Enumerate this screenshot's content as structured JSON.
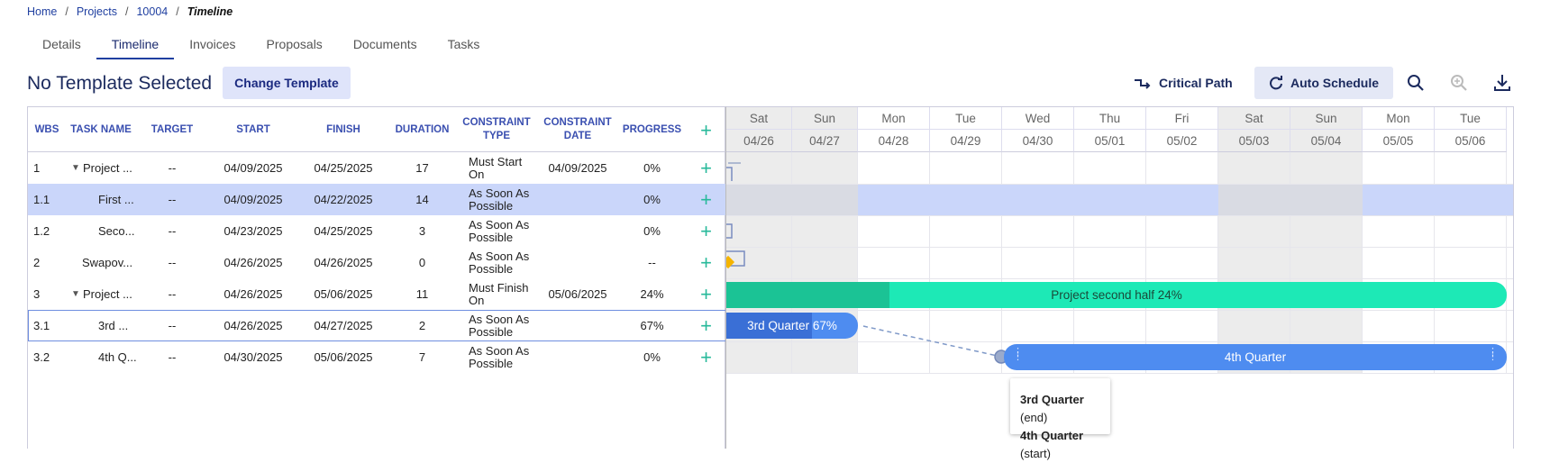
{
  "breadcrumb": {
    "items": [
      "Home",
      "Projects",
      "10004"
    ],
    "current": "Timeline",
    "separator": "/"
  },
  "tabs": [
    {
      "label": "Details",
      "active": false
    },
    {
      "label": "Timeline",
      "active": true
    },
    {
      "label": "Invoices",
      "active": false
    },
    {
      "label": "Proposals",
      "active": false
    },
    {
      "label": "Documents",
      "active": false
    },
    {
      "label": "Tasks",
      "active": false
    }
  ],
  "header": {
    "title": "No Template Selected",
    "change_template_label": "Change Template",
    "critical_path_label": "Critical Path",
    "auto_schedule_label": "Auto Schedule",
    "icons": [
      "critical-path-icon",
      "auto-schedule-icon",
      "zoom-in-icon",
      "zoom-out-icon",
      "download-icon"
    ]
  },
  "grid": {
    "columns": {
      "wbs": "WBS",
      "task_name": "TASK NAME",
      "target": "TARGET",
      "start": "START",
      "finish": "FINISH",
      "duration": "DURATION",
      "constraint_type_1": "CONSTRAINT",
      "constraint_type_2": "TYPE",
      "constraint_date_1": "CONSTRAINT",
      "constraint_date_2": "DATE",
      "progress": "PROGRESS",
      "add": "+"
    },
    "rows": [
      {
        "wbs": "1",
        "name": "Project ...",
        "expand": "▼",
        "target": "--",
        "start": "04/09/2025",
        "finish": "04/25/2025",
        "duration": "17",
        "ctype": "Must Start On",
        "cdate": "04/09/2025",
        "progress": "0%",
        "add": "+"
      },
      {
        "wbs": "1.1",
        "name": "First ...",
        "expand": "",
        "target": "--",
        "start": "04/09/2025",
        "finish": "04/22/2025",
        "duration": "14",
        "ctype": "As Soon As Possible",
        "cdate": "",
        "progress": "0%",
        "add": "+"
      },
      {
        "wbs": "1.2",
        "name": "Seco...",
        "expand": "",
        "target": "--",
        "start": "04/23/2025",
        "finish": "04/25/2025",
        "duration": "3",
        "ctype": "As Soon As Possible",
        "cdate": "",
        "progress": "0%",
        "add": "+"
      },
      {
        "wbs": "2",
        "name": "Swapov...",
        "expand": "",
        "target": "--",
        "start": "04/26/2025",
        "finish": "04/26/2025",
        "duration": "0",
        "ctype": "As Soon As Possible",
        "cdate": "",
        "progress": "--",
        "add": "+"
      },
      {
        "wbs": "3",
        "name": "Project ...",
        "expand": "▼",
        "target": "--",
        "start": "04/26/2025",
        "finish": "05/06/2025",
        "duration": "11",
        "ctype": "Must Finish On",
        "cdate": "05/06/2025",
        "progress": "24%",
        "add": "+"
      },
      {
        "wbs": "3.1",
        "name": "3rd ...",
        "expand": "",
        "target": "--",
        "start": "04/26/2025",
        "finish": "04/27/2025",
        "duration": "2",
        "ctype": "As Soon As Possible",
        "cdate": "",
        "progress": "67%",
        "add": "+"
      },
      {
        "wbs": "3.2",
        "name": "4th Q...",
        "expand": "",
        "target": "--",
        "start": "04/30/2025",
        "finish": "05/06/2025",
        "duration": "7",
        "ctype": "As Soon As Possible",
        "cdate": "",
        "progress": "0%",
        "add": "+"
      }
    ]
  },
  "timeline": {
    "days": [
      {
        "name": "Sat",
        "date": "04/26",
        "weekend": true
      },
      {
        "name": "Sun",
        "date": "04/27",
        "weekend": true
      },
      {
        "name": "Mon",
        "date": "04/28",
        "weekend": false
      },
      {
        "name": "Tue",
        "date": "04/29",
        "weekend": false
      },
      {
        "name": "Wed",
        "date": "04/30",
        "weekend": false
      },
      {
        "name": "Thu",
        "date": "05/01",
        "weekend": false
      },
      {
        "name": "Fri",
        "date": "05/02",
        "weekend": false
      },
      {
        "name": "Sat",
        "date": "05/03",
        "weekend": true
      },
      {
        "name": "Sun",
        "date": "05/04",
        "weekend": true
      },
      {
        "name": "Mon",
        "date": "05/05",
        "weekend": false
      },
      {
        "name": "Tue",
        "date": "05/06",
        "weekend": false
      }
    ],
    "bars": {
      "project_second_half": {
        "label": "Project second half 24%",
        "progress": 0.24,
        "color": "#1de9b6",
        "progress_color": "#1bc395"
      },
      "third_quarter": {
        "label": "3rd Quarter 67%",
        "progress": 0.67,
        "color": "#4e8cf0",
        "progress_color": "#3a6fd6"
      },
      "fourth_quarter": {
        "label": "4th Quarter",
        "color": "#4e8cf0"
      }
    },
    "tooltip": {
      "line1_bold": "3rd Quarter",
      "line1_rest": " (end)",
      "line2_bold": "4th Quarter",
      "line2_rest": " (start)"
    }
  }
}
